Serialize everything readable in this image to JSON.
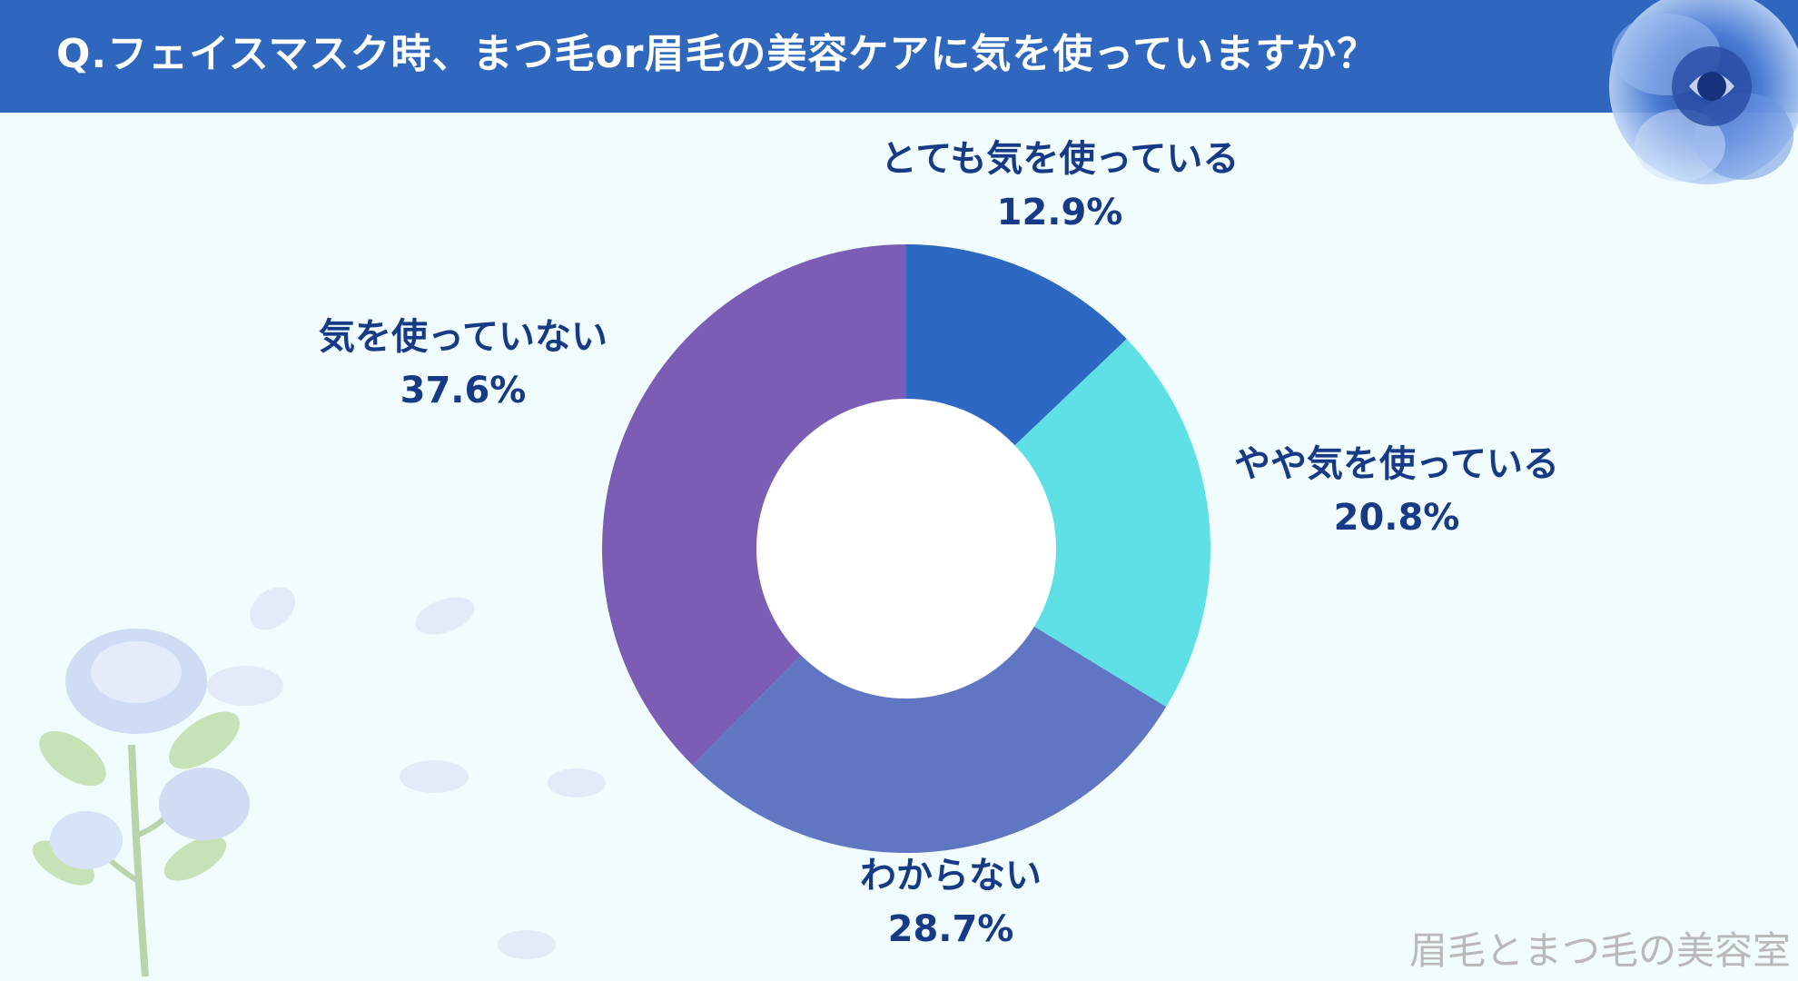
{
  "header": {
    "title": "Q.フェイスマスク時、まつ毛or眉毛の美容ケアに気を使っていますか？"
  },
  "watermark": "眉毛とまつ毛の美容室",
  "colors": {
    "header": "#2f67bf",
    "background": "#f0fcfd",
    "label": "#163a86",
    "slices": [
      "#2d68c2",
      "#5fe0e6",
      "#6076c2",
      "#7b5db5"
    ]
  },
  "chart_data": {
    "type": "pie",
    "style": "donut",
    "title": "Q.フェイスマスク時、まつ毛or眉毛の美容ケアに気を使っていますか？",
    "categories": [
      "とても気を使っている",
      "やや気を使っている",
      "わからない",
      "気を使っていない"
    ],
    "values": [
      12.9,
      20.8,
      28.7,
      37.6
    ],
    "value_labels": [
      "12.9%",
      "20.8%",
      "28.7%",
      "37.6%"
    ],
    "unit": "%",
    "legend": "none",
    "start_angle": "12 o'clock",
    "direction": "clockwise"
  }
}
